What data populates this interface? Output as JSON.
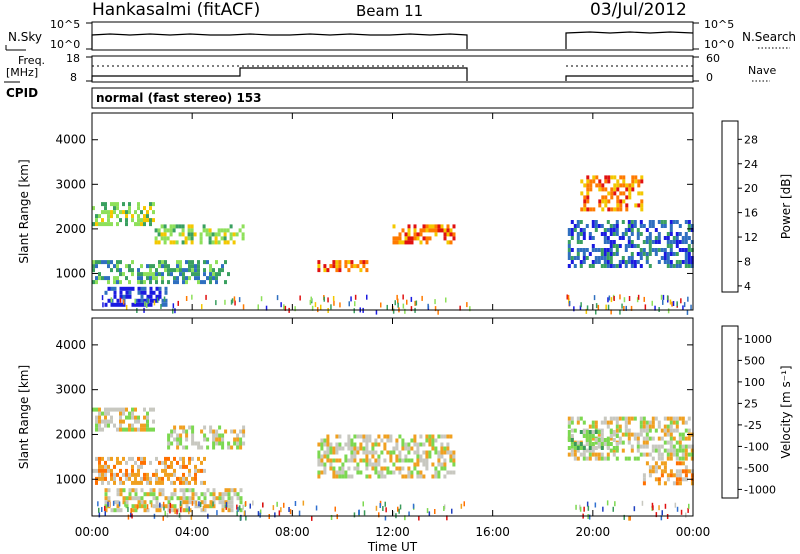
{
  "header": {
    "station": "Hankasalmi (fitACF)",
    "beam": "Beam 11",
    "date": "03/Jul/2012"
  },
  "strip_labels": {
    "nsky": "N.Sky",
    "nsky_ticks": [
      "10^5",
      "10^0"
    ],
    "nsearch": "N.Search",
    "nsearch_ticks": [
      "10^5",
      "10^0"
    ],
    "freq_line1": "Freq.",
    "freq_line2": "[MHz]",
    "freq_ticks": [
      "18",
      "8"
    ],
    "nave": "Nave",
    "nave_ticks": [
      "60",
      "0"
    ],
    "cpid": "CPID",
    "mode": "normal (fast stereo) 153"
  },
  "chart_data": [
    {
      "type": "heatmap",
      "name": "power",
      "ylabel": "Slant Range [km]",
      "xlabel": "Time UT",
      "x_ticks": [
        "00:00",
        "04:00",
        "08:00",
        "12:00",
        "16:00",
        "20:00",
        "00:00"
      ],
      "xlim_hours": [
        0,
        24
      ],
      "y_ticks": [
        1000,
        2000,
        3000,
        4000
      ],
      "ylim": [
        180,
        4600
      ],
      "colorbar_label": "Power [dB]",
      "colorbar_ticks": [
        "28",
        "24",
        "20",
        "16",
        "12",
        "8",
        "4"
      ],
      "colorbar_colors": [
        "#e01010",
        "#ff7a00",
        "#f4c800",
        "#8ee05a",
        "#3aa060",
        "#2f6fc0",
        "#1a1ae0"
      ],
      "data_gap_hours": [
        15.1,
        18.9
      ],
      "echo_regions": [
        {
          "t0": 0.0,
          "t1": 2.5,
          "r0": 2100,
          "r1": 2600,
          "level": 3
        },
        {
          "t0": 0.0,
          "t1": 5.5,
          "r0": 800,
          "r1": 1300,
          "level": 4
        },
        {
          "t0": 0.5,
          "t1": 3.0,
          "r0": 300,
          "r1": 700,
          "level": 6
        },
        {
          "t0": 2.5,
          "t1": 6.0,
          "r0": 1700,
          "r1": 2100,
          "level": 3
        },
        {
          "t0": 9.0,
          "t1": 11.0,
          "r0": 1100,
          "r1": 1300,
          "level": 1
        },
        {
          "t0": 12.0,
          "t1": 14.5,
          "r0": 1700,
          "r1": 2100,
          "level": 1
        },
        {
          "t0": 19.0,
          "t1": 24.0,
          "r0": 1200,
          "r1": 2200,
          "level": 5
        },
        {
          "t0": 19.5,
          "t1": 22.0,
          "r0": 2400,
          "r1": 3200,
          "level": 1
        }
      ]
    },
    {
      "type": "heatmap",
      "name": "velocity",
      "ylabel": "Slant Range [km]",
      "xlabel": "Time UT",
      "x_ticks": [
        "00:00",
        "04:00",
        "08:00",
        "12:00",
        "16:00",
        "20:00",
        "00:00"
      ],
      "xlim_hours": [
        0,
        24
      ],
      "y_ticks": [
        1000,
        2000,
        3000,
        4000
      ],
      "ylim": [
        180,
        4600
      ],
      "colorbar_label": "Velocity [m s⁻¹]",
      "colorbar_ticks": [
        "1000",
        "500",
        "100",
        "25",
        "-25",
        "-100",
        "-500",
        "-1000"
      ],
      "colorbar_colors": [
        "#2040c0",
        "#3070d0",
        "#3a9a5a",
        "#7cd850",
        "#c8c8c0",
        "#f0a020",
        "#ff7000",
        "#e01010"
      ],
      "data_gap_hours": [
        15.1,
        18.9
      ],
      "echo_regions": [
        {
          "t0": 0.0,
          "t1": 2.5,
          "r0": 2100,
          "r1": 2600,
          "level": 4
        },
        {
          "t0": 0.0,
          "t1": 4.5,
          "r0": 900,
          "r1": 1500,
          "level": 5
        },
        {
          "t0": 0.5,
          "t1": 6.0,
          "r0": 300,
          "r1": 800,
          "level": 4
        },
        {
          "t0": 3.0,
          "t1": 6.0,
          "r0": 1700,
          "r1": 2200,
          "level": 4
        },
        {
          "t0": 9.0,
          "t1": 14.5,
          "r0": 1100,
          "r1": 2000,
          "level": 4
        },
        {
          "t0": 19.0,
          "t1": 24.0,
          "r0": 1500,
          "r1": 2400,
          "level": 4
        },
        {
          "t0": 19.0,
          "t1": 21.0,
          "r0": 1700,
          "r1": 2100,
          "level": 3
        },
        {
          "t0": 22.0,
          "t1": 24.0,
          "r0": 900,
          "r1": 1400,
          "level": 5
        }
      ]
    }
  ]
}
